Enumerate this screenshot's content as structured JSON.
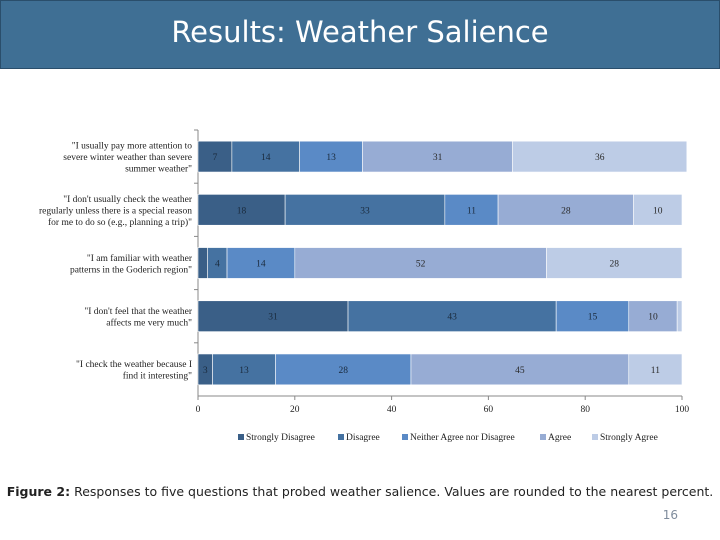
{
  "slide": {
    "title": "Results: Weather Salience",
    "caption_prefix": "Figure 2:",
    "caption_text": " Responses to five questions that probed weather salience.  Values are rounded to the nearest percent.",
    "page_number": "16"
  },
  "chart_data": {
    "type": "bar",
    "orientation": "horizontal-stacked",
    "title": "",
    "xlabel": "",
    "ylabel": "",
    "xlim": [
      0,
      100
    ],
    "x_ticks": [
      "0",
      "20",
      "40",
      "60",
      "80",
      "100"
    ],
    "grid": false,
    "legend_position": "bottom",
    "categories": [
      [
        "\"I usually pay more attention to",
        "severe winter weather than severe",
        "summer weather\""
      ],
      [
        "\"I don't usually check the weather",
        "regularly unless there is a special reason",
        "for me to do so (e.g., planning a trip)\""
      ],
      [
        "\"I am familiar with weather",
        "patterns in the Goderich region\""
      ],
      [
        "\"I don't feel that the weather",
        "affects me very much\""
      ],
      [
        "\"I check the weather because I",
        "find it interesting\""
      ]
    ],
    "series": [
      {
        "name": "Strongly Disagree",
        "color": "#3a5f87",
        "values": [
          7,
          18,
          2,
          31,
          3
        ],
        "labels": [
          "7",
          "18",
          "",
          "31",
          "3"
        ]
      },
      {
        "name": "Disagree",
        "color": "#4572a1",
        "values": [
          14,
          33,
          4,
          43,
          13
        ],
        "labels": [
          "14",
          "33",
          "4",
          "43",
          "13"
        ]
      },
      {
        "name": "Neither Agree nor Disagree",
        "color": "#5a8ac6",
        "values": [
          13,
          11,
          14,
          15,
          28
        ],
        "labels": [
          "13",
          "11",
          "14",
          "15",
          "28"
        ]
      },
      {
        "name": "Agree",
        "color": "#97acd4",
        "values": [
          31,
          28,
          52,
          10,
          45
        ],
        "labels": [
          "31",
          "28",
          "52",
          "10",
          "45"
        ]
      },
      {
        "name": "Strongly Agree",
        "color": "#bdcce6",
        "values": [
          36,
          10,
          28,
          1,
          11
        ],
        "labels": [
          "36",
          "10",
          "28",
          "",
          "11"
        ]
      }
    ]
  }
}
